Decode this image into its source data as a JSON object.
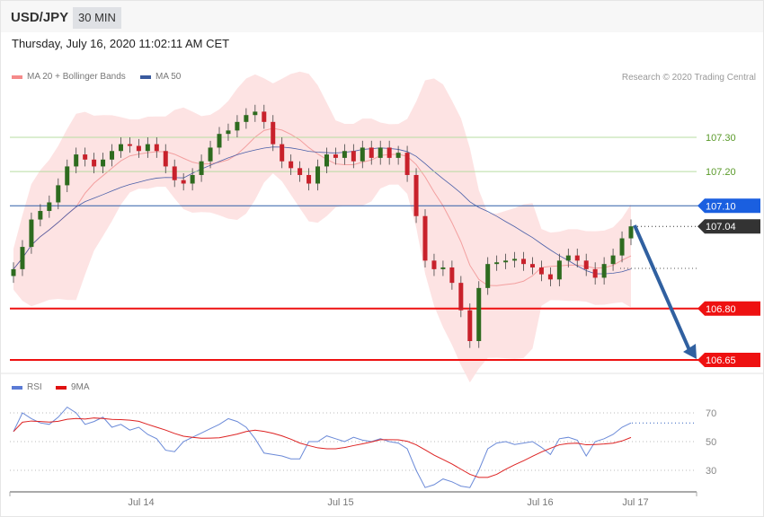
{
  "header": {
    "symbol": "USD/JPY",
    "timeframe": "30 MIN",
    "datetime": "Thursday, July 16, 2020 11:02:11 AM CET"
  },
  "legend": {
    "ma20": "MA 20 + Bollinger Bands",
    "ma50": "MA 50",
    "copyright": "Research © 2020 Trading Central",
    "rsi": "RSI",
    "ma9": "9MA"
  },
  "colors": {
    "bull": "#2e6b1f",
    "bear": "#c8212b",
    "band": "#fde0e0",
    "ma50": "#4a5fa8",
    "resistance_green": "#b7dca0",
    "pivot_blue": "#1a5fe0",
    "support_red": "#ee1111",
    "arrow": "#3060a0",
    "rsi": "#6b8ad8",
    "ma9": "#dd2222"
  },
  "chart_data": [
    {
      "type": "candlestick",
      "ylim": [
        106.63,
        107.45
      ],
      "levels": [
        {
          "label": "107.30",
          "value": 107.3,
          "kind": "resistance"
        },
        {
          "label": "107.20",
          "value": 107.2,
          "kind": "resistance"
        },
        {
          "label": "107.10",
          "value": 107.1,
          "kind": "pivot"
        },
        {
          "label": "107.04",
          "value": 107.04,
          "kind": "last"
        },
        {
          "label": "106.80",
          "value": 106.8,
          "kind": "support"
        },
        {
          "label": "106.65",
          "value": 106.65,
          "kind": "support"
        }
      ],
      "closes": [
        106.915,
        106.98,
        107.06,
        107.085,
        107.11,
        107.16,
        107.215,
        107.25,
        107.235,
        107.215,
        107.235,
        107.26,
        107.28,
        107.275,
        107.26,
        107.28,
        107.26,
        107.215,
        107.175,
        107.165,
        107.19,
        107.23,
        107.27,
        107.31,
        107.32,
        107.345,
        107.365,
        107.375,
        107.345,
        107.28,
        107.23,
        107.21,
        107.19,
        107.165,
        107.215,
        107.25,
        107.24,
        107.26,
        107.23,
        107.27,
        107.24,
        107.27,
        107.24,
        107.255,
        107.19,
        107.07,
        106.94,
        106.915,
        106.92,
        106.875,
        106.795,
        106.705,
        106.86,
        106.93,
        106.935,
        106.94,
        106.945,
        106.93,
        106.92,
        106.9,
        106.885,
        106.94,
        106.955,
        106.94,
        106.915,
        106.89,
        106.93,
        106.955,
        107.005,
        107.04
      ],
      "x_ticks": [
        "Jul 14",
        "Jul 15",
        "Jul 16",
        "Jul 17"
      ],
      "forecast_target": 106.65
    },
    {
      "type": "line",
      "title": "RSI",
      "ylim": [
        15,
        80
      ],
      "y_ticks": [
        "70",
        "50",
        "30"
      ],
      "rsi": [
        57,
        70,
        66,
        63,
        62,
        67,
        74,
        70,
        62,
        64,
        67,
        60,
        62,
        58,
        60,
        55,
        52,
        44,
        43,
        50,
        53,
        56,
        59,
        62,
        66,
        64,
        60,
        52,
        42,
        41,
        40,
        38,
        38,
        50,
        50,
        54,
        52,
        50,
        53,
        51,
        50,
        52,
        50,
        49,
        45,
        30,
        18,
        20,
        24,
        22,
        19,
        18,
        30,
        45,
        49,
        50,
        48,
        49,
        50,
        46,
        41,
        52,
        53,
        51,
        40,
        50,
        52,
        55,
        60,
        63
      ]
    }
  ]
}
